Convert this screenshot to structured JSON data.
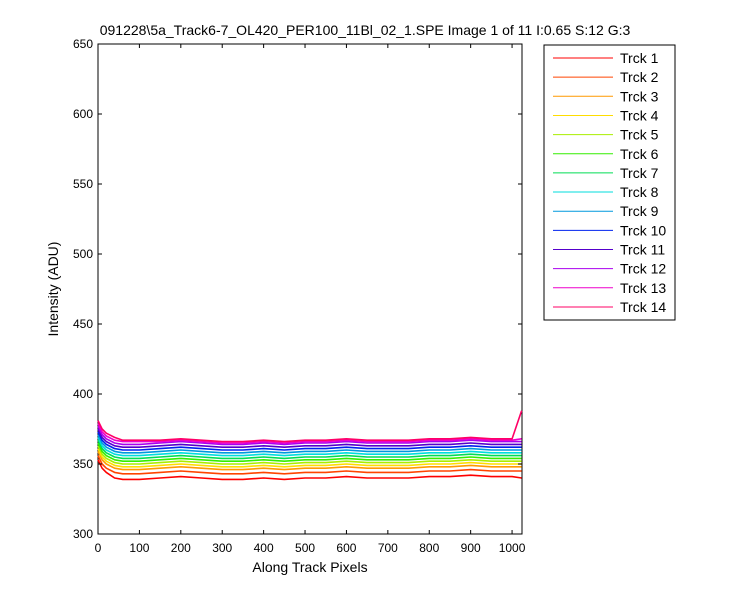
{
  "chart_data": {
    "type": "line",
    "title": "091228\\5a_Track6-7_OL420_PER100_11Bl_02_1.SPE  Image 1 of 11  I:0.65  S:12  G:3",
    "xlabel": "Along Track Pixels",
    "ylabel": "Intensity (ADU)",
    "xlim": [
      0,
      1024
    ],
    "ylim": [
      300,
      650
    ],
    "xticks": [
      0,
      100,
      200,
      300,
      400,
      500,
      600,
      700,
      800,
      900,
      1000
    ],
    "yticks": [
      300,
      350,
      400,
      450,
      500,
      550,
      600,
      650
    ],
    "grid": false,
    "legend_position": "outside-right",
    "x": [
      0,
      10,
      20,
      40,
      60,
      100,
      150,
      200,
      250,
      300,
      350,
      400,
      450,
      500,
      550,
      600,
      650,
      700,
      750,
      800,
      850,
      900,
      950,
      1000,
      1023
    ],
    "series": [
      {
        "name": "Trck 1",
        "color": "#ff0000",
        "values": [
          353,
          347,
          344,
          340,
          339,
          339,
          340,
          341,
          340,
          339,
          339,
          340,
          339,
          340,
          340,
          341,
          340,
          340,
          340,
          341,
          341,
          342,
          341,
          341,
          340
        ]
      },
      {
        "name": "Trck 2",
        "color": "#ff4400",
        "values": [
          356,
          350,
          347,
          344,
          343,
          343,
          344,
          345,
          344,
          343,
          343,
          344,
          343,
          344,
          344,
          345,
          344,
          344,
          344,
          345,
          345,
          346,
          345,
          345,
          345
        ]
      },
      {
        "name": "Trck 3",
        "color": "#ff9900",
        "values": [
          359,
          353,
          350,
          347,
          346,
          346,
          347,
          348,
          347,
          346,
          346,
          347,
          346,
          347,
          347,
          348,
          347,
          347,
          347,
          348,
          348,
          349,
          348,
          348,
          348
        ]
      },
      {
        "name": "Trck 4",
        "color": "#ffdd00",
        "values": [
          361,
          355,
          352,
          349,
          348,
          348,
          349,
          350,
          349,
          348,
          348,
          349,
          348,
          349,
          349,
          350,
          349,
          349,
          349,
          350,
          350,
          351,
          350,
          350,
          350
        ]
      },
      {
        "name": "Trck 5",
        "color": "#aaee00",
        "values": [
          363,
          357,
          354,
          351,
          350,
          350,
          351,
          352,
          351,
          350,
          350,
          351,
          350,
          351,
          351,
          352,
          351,
          351,
          351,
          352,
          352,
          353,
          352,
          352,
          352
        ]
      },
      {
        "name": "Trck 6",
        "color": "#33ee00",
        "values": [
          365,
          359,
          356,
          353,
          352,
          352,
          353,
          354,
          353,
          352,
          352,
          353,
          352,
          353,
          353,
          354,
          353,
          353,
          353,
          354,
          354,
          355,
          354,
          354,
          354
        ]
      },
      {
        "name": "Trck 7",
        "color": "#00dd55",
        "values": [
          367,
          361,
          358,
          355,
          354,
          354,
          355,
          356,
          355,
          354,
          354,
          355,
          354,
          355,
          355,
          356,
          355,
          355,
          355,
          356,
          356,
          357,
          356,
          356,
          356
        ]
      },
      {
        "name": "Trck 8",
        "color": "#00dddd",
        "values": [
          369,
          363,
          360,
          357,
          356,
          356,
          357,
          358,
          357,
          356,
          356,
          357,
          356,
          357,
          357,
          358,
          357,
          357,
          357,
          358,
          358,
          359,
          358,
          358,
          358
        ]
      },
      {
        "name": "Trck 9",
        "color": "#0099dd",
        "values": [
          371,
          365,
          362,
          359,
          358,
          358,
          359,
          360,
          359,
          358,
          358,
          359,
          358,
          359,
          359,
          360,
          359,
          359,
          359,
          360,
          360,
          361,
          360,
          360,
          360
        ]
      },
      {
        "name": "Trck 10",
        "color": "#0022ee",
        "values": [
          373,
          367,
          364,
          361,
          360,
          360,
          361,
          362,
          361,
          360,
          360,
          361,
          360,
          361,
          361,
          362,
          361,
          361,
          361,
          362,
          362,
          363,
          362,
          362,
          362
        ]
      },
      {
        "name": "Trck 11",
        "color": "#5500cc",
        "values": [
          375,
          369,
          366,
          363,
          362,
          362,
          363,
          364,
          363,
          362,
          362,
          363,
          362,
          363,
          363,
          364,
          363,
          363,
          363,
          364,
          364,
          365,
          364,
          364,
          364
        ]
      },
      {
        "name": "Trck 12",
        "color": "#aa00ee",
        "values": [
          377,
          371,
          368,
          365,
          364,
          364,
          365,
          366,
          365,
          364,
          364,
          365,
          364,
          365,
          365,
          366,
          365,
          365,
          365,
          366,
          366,
          367,
          366,
          366,
          366
        ]
      },
      {
        "name": "Trck 13",
        "color": "#ee00cc",
        "values": [
          379,
          373,
          370,
          367,
          366,
          366,
          366,
          367,
          366,
          365,
          365,
          366,
          365,
          366,
          366,
          367,
          366,
          366,
          366,
          367,
          367,
          368,
          367,
          367,
          368
        ]
      },
      {
        "name": "Trck 14",
        "color": "#ff0066",
        "values": [
          381,
          375,
          372,
          369,
          367,
          367,
          367,
          368,
          367,
          366,
          366,
          367,
          366,
          367,
          367,
          368,
          367,
          367,
          367,
          368,
          368,
          369,
          368,
          368,
          388
        ]
      }
    ]
  }
}
